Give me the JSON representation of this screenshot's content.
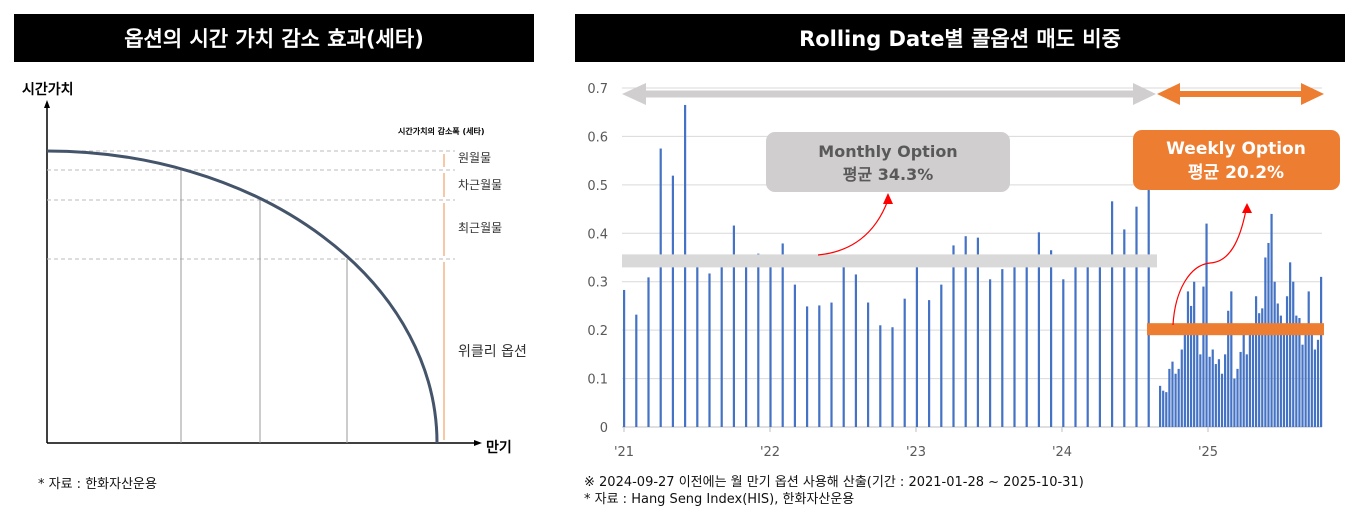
{
  "left": {
    "title": "옵션의 시간 가치 감소 효과(세타)",
    "y_label": "시간가치",
    "x_label": "만기",
    "legend_title": "시간가치의 감소폭 (세타)",
    "segments": [
      "원월물",
      "차근월물",
      "최근월물",
      "위클리 옵션"
    ],
    "source": "* 자료 : 한화자산운용",
    "colors": {
      "curve": "#44546a",
      "arrows": "#f4a46a"
    }
  },
  "right": {
    "title": "Rolling Date별 콜옵션 매도 비중",
    "notes": [
      "※ 2024-09-27 이전에는 월 만기 옵션 사용해 산출(기간 : 2021-01-28 ~ 2025-10-31)",
      "* 자료 : Hang Seng Index(HIS), 한화자산운용"
    ],
    "monthly_box": {
      "line1": "Monthly Option",
      "line2": "평균 34.3%"
    },
    "weekly_box": {
      "line1": "Weekly Option",
      "line2": "평균 20.2%"
    },
    "colors": {
      "bar": "#4472c4",
      "monthly": "#d0cece",
      "weekly": "#ed7d31",
      "annot_arrow": "#ff0000"
    }
  },
  "chart_data": {
    "type": "bar",
    "title": "Rolling Date별 콜옵션 매도 비중",
    "xlabel": "",
    "ylabel": "",
    "ylim": [
      0,
      0.7
    ],
    "yticks": [
      "0",
      "0.1",
      "0.2",
      "0.3",
      "0.4",
      "0.5",
      "0.6",
      "0.7"
    ],
    "xticks": [
      "'21",
      "'22",
      "'23",
      "'24",
      "'25"
    ],
    "grid": true,
    "monthly_average": 0.343,
    "weekly_average": 0.202,
    "series": [
      {
        "name": "Monthly Option",
        "values": [
          0.283,
          0.232,
          0.309,
          0.575,
          0.519,
          0.665,
          0.34,
          0.317,
          0.34,
          0.416,
          0.35,
          0.358,
          0.35,
          0.379,
          0.294,
          0.249,
          0.251,
          0.257,
          0.34,
          0.315,
          0.257,
          0.21,
          0.206,
          0.265,
          0.34,
          0.262,
          0.294,
          0.375,
          0.394,
          0.391,
          0.305,
          0.326,
          0.34,
          0.34,
          0.402,
          0.365,
          0.305,
          0.34,
          0.34,
          0.34,
          0.466,
          0.408,
          0.455,
          0.5
        ]
      },
      {
        "name": "Weekly Option",
        "values": [
          0.085,
          0.075,
          0.072,
          0.12,
          0.135,
          0.11,
          0.12,
          0.16,
          0.19,
          0.28,
          0.25,
          0.3,
          0.19,
          0.15,
          0.29,
          0.42,
          0.145,
          0.16,
          0.13,
          0.14,
          0.11,
          0.15,
          0.24,
          0.28,
          0.1,
          0.12,
          0.155,
          0.2,
          0.15,
          0.2,
          0.2,
          0.27,
          0.235,
          0.245,
          0.35,
          0.38,
          0.44,
          0.3,
          0.255,
          0.23,
          0.19,
          0.27,
          0.34,
          0.3,
          0.23,
          0.225,
          0.17,
          0.2,
          0.28,
          0.2,
          0.16,
          0.18,
          0.31
        ]
      }
    ]
  }
}
